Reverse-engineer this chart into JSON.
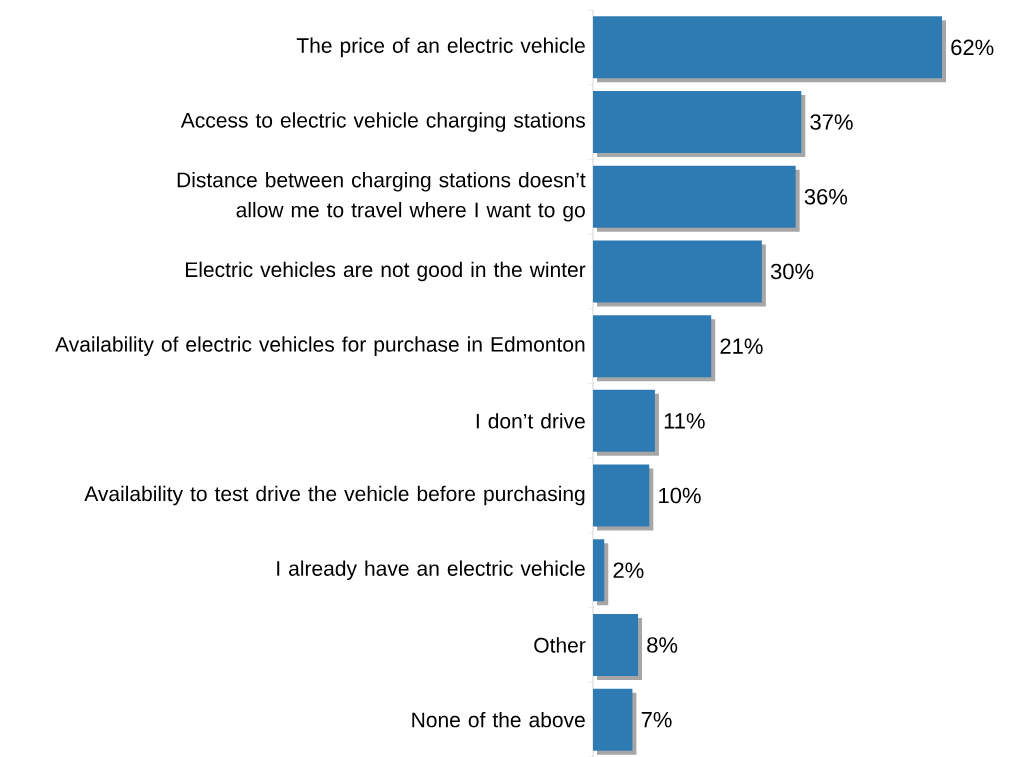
{
  "chart_data": {
    "type": "bar",
    "orientation": "horizontal",
    "categories": [
      "The price of an electric vehicle",
      "Access to electric vehicle charging stations",
      "Distance between charging stations doesn’t allow me to travel where I want to go",
      "Electric vehicles are not good in the winter",
      "Availability of electric vehicles for purchase in Edmonton",
      "I don’t drive",
      "Availability to test drive the vehicle before purchasing",
      "I already have an electric vehicle",
      "Other",
      "None of the above"
    ],
    "values": [
      62,
      37,
      36,
      30,
      21,
      11,
      10,
      2,
      8,
      7
    ],
    "value_labels": [
      "62%",
      "37%",
      "36%",
      "30%",
      "21%",
      "11%",
      "10%",
      "2%",
      "8%",
      "7%"
    ],
    "color": "#2e7bb4",
    "xlim": [
      0,
      62
    ],
    "tick_labels": "y"
  }
}
